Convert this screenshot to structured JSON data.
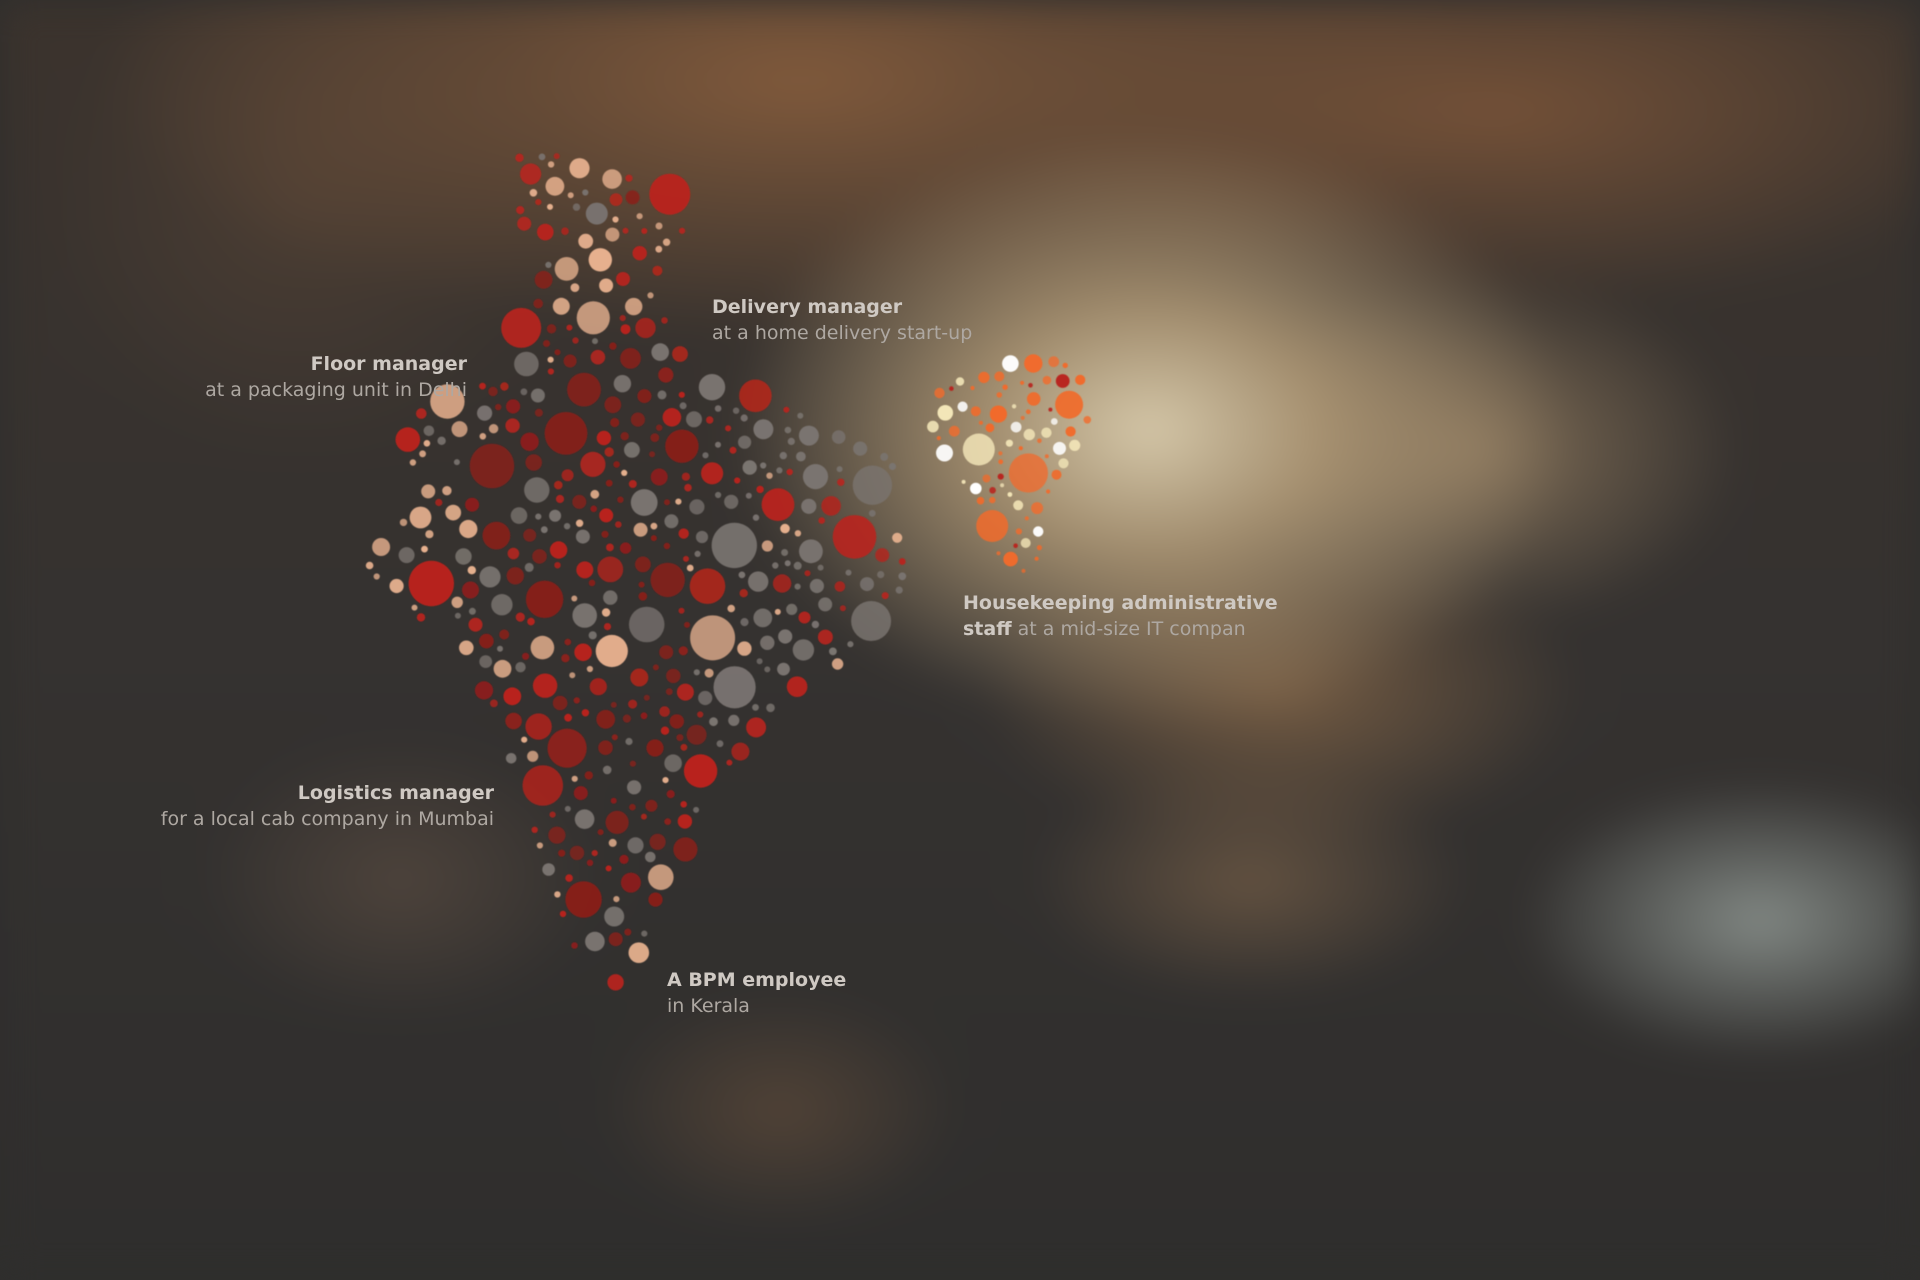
{
  "colors": {
    "background": "#2f2e2d",
    "dot_dark_red": "#8a1f1a",
    "dot_red": "#b9231c",
    "dot_grey": "#7a7470",
    "dot_peach": "#e6b08e",
    "dot_orange": "#f26a2a",
    "dot_pale": "#f3e6b8",
    "label_text": "#b9b3ad"
  },
  "map": {
    "name": "India",
    "style": "dot-map"
  },
  "annotations": [
    {
      "id": "delivery",
      "title": "Delivery manager",
      "subtitle": "at a home delivery start-up"
    },
    {
      "id": "floor",
      "title": "Floor manager",
      "subtitle": "at a packaging unit in Delhi"
    },
    {
      "id": "housekeeping",
      "title": "Housekeeping administrative",
      "subtitle_bold": "staff",
      "subtitle": "at a mid-size IT compan"
    },
    {
      "id": "logistics",
      "title": "Logistics manager",
      "subtitle": "for a local cab company in Mumbai"
    },
    {
      "id": "bpm",
      "title": "A BPM employee",
      "subtitle": "in Kerala"
    }
  ]
}
